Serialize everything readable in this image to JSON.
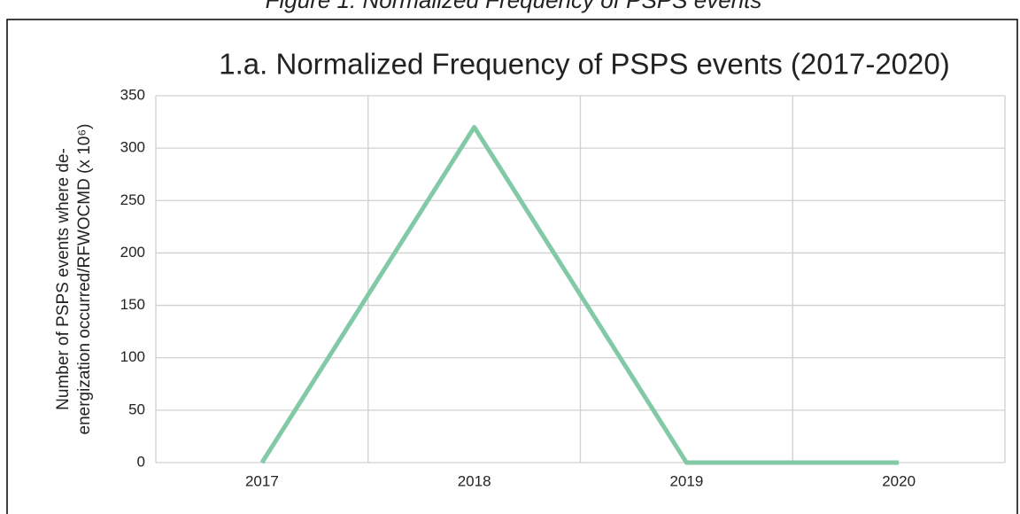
{
  "caption": "Figure 1: Normalized Frequency of PSPS events",
  "chart_data": {
    "type": "line",
    "title": "1.a. Normalized Frequency of PSPS events (2017-2020)",
    "y_label_lines": [
      "Number of PSPS events where de-",
      "energization occurred/RFWOCMD (x 10⁶)"
    ],
    "categories": [
      "2017",
      "2018",
      "2019",
      "2020"
    ],
    "series": [
      {
        "name": "Normalized Frequency",
        "color": "#82c9a5",
        "values": [
          0,
          320,
          0,
          0
        ]
      }
    ],
    "ylim": [
      0,
      350
    ],
    "yticks": [
      0,
      50,
      100,
      150,
      200,
      250,
      300,
      350
    ],
    "grid": true
  }
}
